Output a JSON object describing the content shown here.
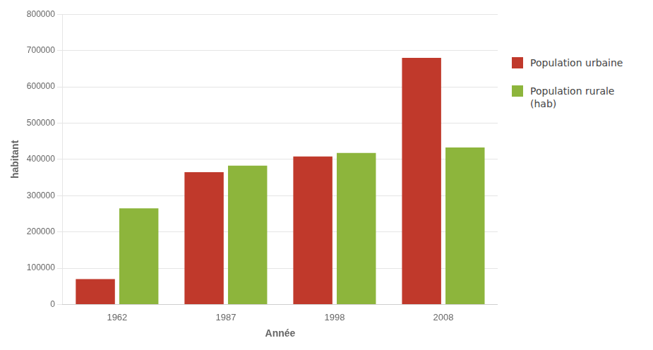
{
  "chart_data": {
    "type": "bar",
    "categories": [
      "1962",
      "1987",
      "1998",
      "2008"
    ],
    "series": [
      {
        "name": "Population urbaine",
        "color": "#C0392B",
        "values": [
          70000,
          365000,
          408000,
          680000
        ]
      },
      {
        "name": "Population rurale\n(hab)",
        "color": "#8DB53C",
        "values": [
          265000,
          383000,
          418000,
          433000
        ]
      }
    ],
    "xlabel": "Année",
    "ylabel": "habitant",
    "ylim": [
      0,
      800000
    ],
    "yticks": [
      0,
      100000,
      200000,
      300000,
      400000,
      500000,
      600000,
      700000,
      800000
    ],
    "grid": true,
    "legend": "right"
  }
}
